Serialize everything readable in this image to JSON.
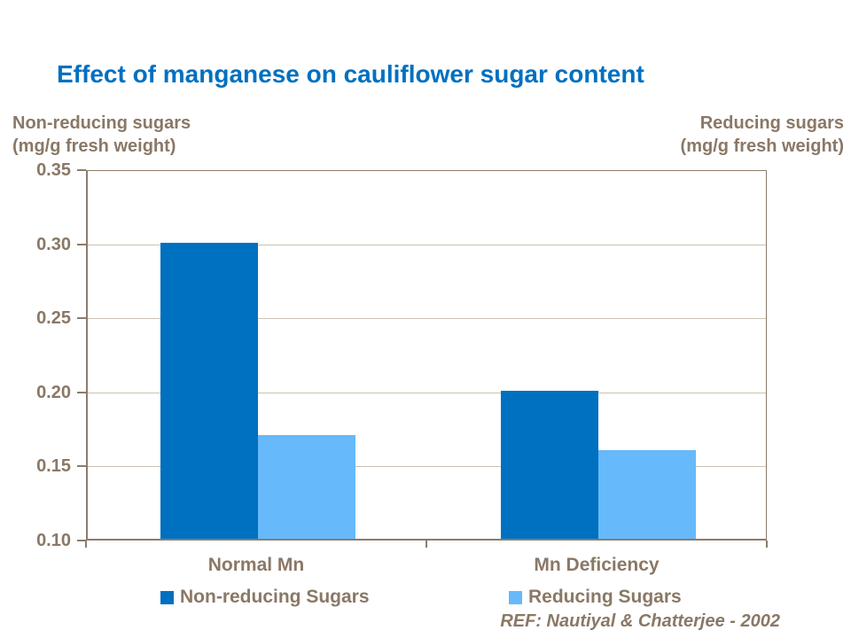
{
  "slide": {
    "title": "Effect of manganese on cauliflower sugar content",
    "reference": "REF: Nautiyal & Chatterjee - 2002"
  },
  "colors": {
    "title_blue": "#0070C0",
    "series_dark_blue": "#0070C0",
    "series_light_blue": "#66B9FA",
    "text_brown": "#8A7866",
    "axis_brown": "#8C7C6A",
    "gridline_tan": "#CBC2B1",
    "background": "#FFFFFF"
  },
  "chart_data": {
    "type": "bar",
    "title": "Effect of manganese on cauliflower sugar content",
    "categories": [
      "Normal Mn",
      "Mn Deficiency"
    ],
    "series": [
      {
        "name": "Non-reducing Sugars",
        "color": "#0070C0",
        "values": [
          0.3,
          0.2
        ]
      },
      {
        "name": "Reducing Sugars",
        "color": "#66B9FA",
        "values": [
          0.17,
          0.16
        ]
      }
    ],
    "ylim": [
      0.1,
      0.35
    ],
    "ytick_interval": 0.05,
    "ytick_labels": [
      "0.35",
      "0.30",
      "0.25",
      "0.20",
      "0.15",
      "0.10"
    ],
    "left_axis_label_lines": [
      "Non-reducing sugars",
      "(mg/g fresh weight)"
    ],
    "right_axis_label_lines": [
      "Reducing sugars",
      "(mg/g fresh weight)"
    ],
    "grid": true,
    "legend_position": "bottom",
    "reference": "REF: Nautiyal & Chatterjee - 2002"
  }
}
